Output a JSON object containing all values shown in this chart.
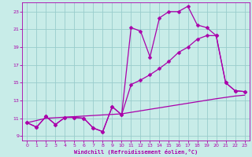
{
  "xlabel": "Windchill (Refroidissement éolien,°C)",
  "background_color": "#c8ece8",
  "grid_color": "#99cccc",
  "line_color": "#aa00aa",
  "markersize": 2.5,
  "linewidth": 0.9,
  "xlim": [
    -0.5,
    23.5
  ],
  "ylim": [
    8.5,
    24.0
  ],
  "xticks": [
    0,
    1,
    2,
    3,
    4,
    5,
    6,
    7,
    8,
    9,
    10,
    11,
    12,
    13,
    14,
    15,
    16,
    17,
    18,
    19,
    20,
    21,
    22,
    23
  ],
  "yticks": [
    9,
    11,
    13,
    15,
    17,
    19,
    21,
    23
  ],
  "line1_x": [
    0,
    1,
    2,
    3,
    4,
    5,
    6,
    7,
    8,
    9,
    10,
    11,
    12,
    13,
    14,
    15,
    16,
    17,
    18,
    19,
    20,
    21,
    22,
    23
  ],
  "line1_y": [
    10.5,
    10.0,
    11.2,
    10.3,
    11.1,
    11.1,
    11.0,
    9.9,
    9.5,
    12.3,
    11.4,
    21.2,
    20.8,
    17.9,
    22.3,
    23.0,
    23.0,
    23.6,
    21.5,
    21.2,
    20.3,
    15.0,
    14.1,
    14.0
  ],
  "line2_x": [
    0,
    1,
    2,
    3,
    4,
    5,
    6,
    7,
    8,
    9,
    10,
    11,
    12,
    13,
    14,
    15,
    16,
    17,
    18,
    19,
    20,
    21,
    22,
    23
  ],
  "line2_y": [
    10.5,
    10.0,
    11.2,
    10.3,
    11.1,
    11.1,
    11.0,
    9.9,
    9.5,
    12.3,
    11.4,
    14.8,
    15.3,
    15.9,
    16.6,
    17.4,
    18.4,
    19.0,
    19.9,
    20.3,
    20.3,
    15.0,
    14.1,
    14.0
  ],
  "line3_x": [
    0,
    2,
    10,
    20,
    22,
    23
  ],
  "line3_y": [
    10.5,
    11.0,
    11.5,
    13.2,
    13.5,
    13.6
  ]
}
